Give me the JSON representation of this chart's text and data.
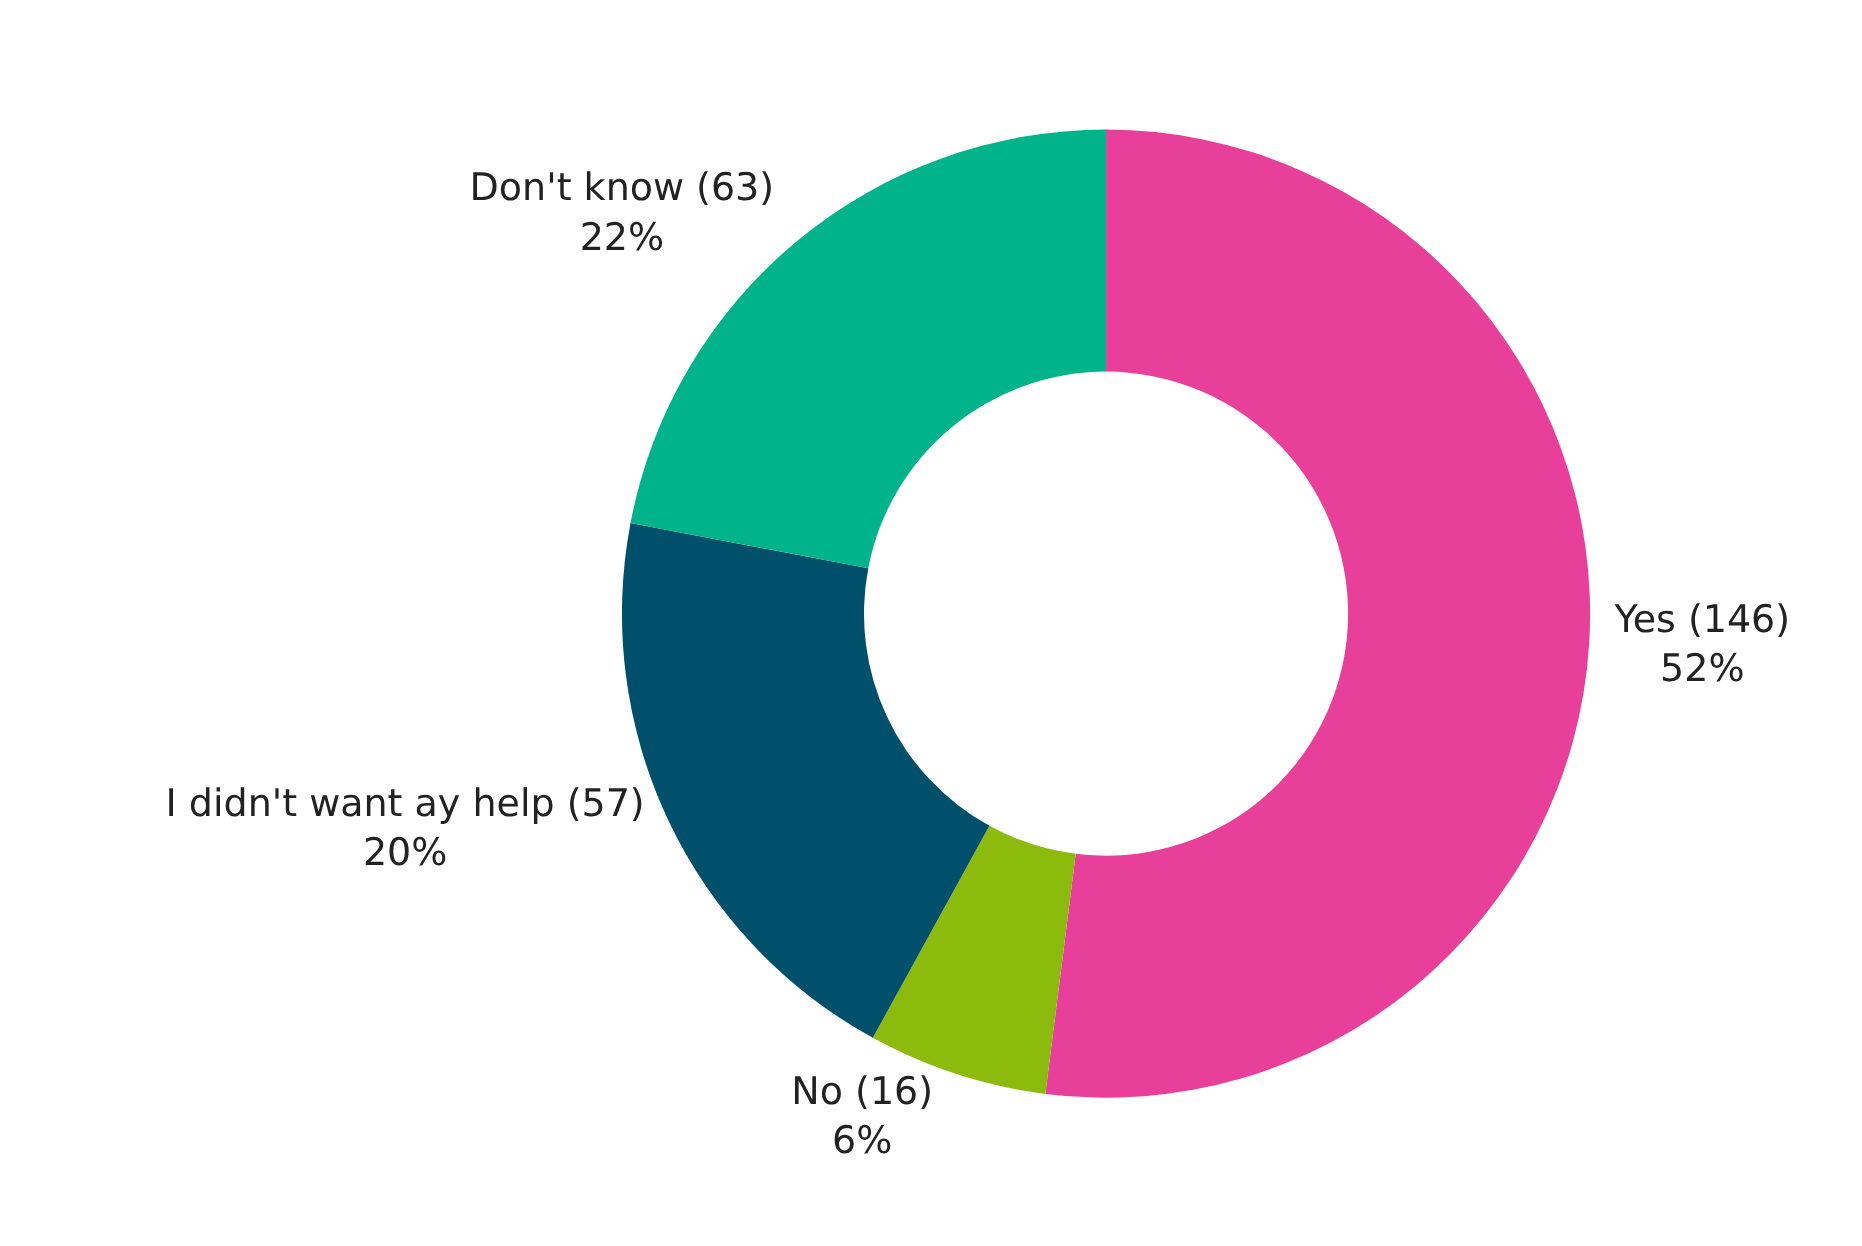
{
  "chart_data": {
    "type": "donut",
    "categories": [
      "Yes (146)",
      "No (16)",
      "I didn't want ay help (57)",
      "Don't know (63)"
    ],
    "values": [
      52,
      6,
      20,
      22
    ],
    "value_labels": [
      "52%",
      "6%",
      "20%",
      "22%"
    ],
    "colors": [
      "#e8409a",
      "#8cbb0e",
      "#004f6b",
      "#00b38b"
    ],
    "legend": false
  }
}
